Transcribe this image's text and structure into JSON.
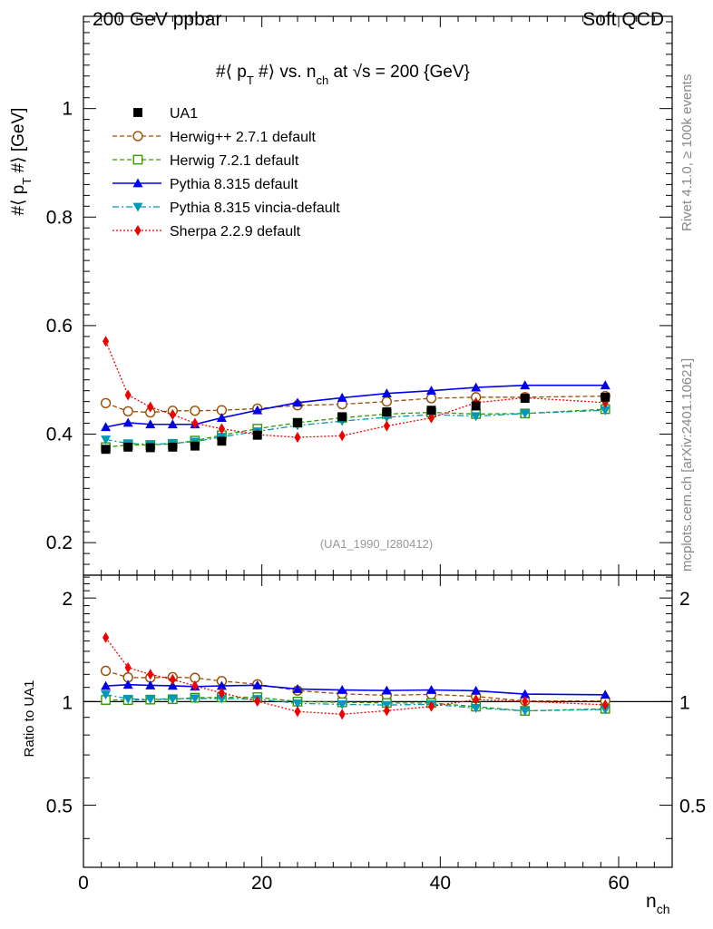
{
  "header": {
    "left": "200 GeV ppbar",
    "right": "Soft QCD",
    "title_main": "#⟨ p",
    "title_sub_t": "T",
    "title_rest": " #⟩ vs. n",
    "title_sub_ch": "ch",
    "title_tail": " at √s = 200 {GeV}",
    "ref": "(UA1_1990_I280412)"
  },
  "side_text": {
    "rivet": "Rivet 4.1.0, ≥ 100k events",
    "mcplots": "mcplots.cern.ch [arXiv:2401.10621]"
  },
  "axes": {
    "ylabel_main_a": "#⟨ p",
    "ylabel_main_sub": "T",
    "ylabel_main_b": " #⟩ [GeV]",
    "ylabel_ratio": "Ratio to UA1",
    "xlabel": "n",
    "xlabel_sub": "ch"
  },
  "chart_data": {
    "type": "line",
    "title": "#⟨ p_T #⟩ vs. n_ch at √s = 200 {GeV}",
    "xlim": [
      0,
      66
    ],
    "ylim_main": [
      0.14,
      1.17
    ],
    "ylim_ratio": [
      0.33,
      2.33
    ],
    "x_ticks": [
      0,
      20,
      40,
      60
    ],
    "y_ticks_main": [
      0.2,
      0.4,
      0.6,
      0.8,
      1
    ],
    "y_ticks_ratio": [
      0.5,
      1,
      2
    ],
    "x": [
      2.5,
      5,
      7.5,
      10,
      12.5,
      15.5,
      19.5,
      24,
      29,
      34,
      39,
      44,
      49.5,
      58.5
    ],
    "data": {
      "name": "UA1",
      "values": [
        0.372,
        0.376,
        0.375,
        0.376,
        0.378,
        0.387,
        0.398,
        0.421,
        0.432,
        0.441,
        0.444,
        0.452,
        0.466,
        0.468
      ]
    },
    "series": [
      {
        "name": "Herwig++ 2.7.1 default",
        "color": "#994c00",
        "marker": "circle-open",
        "dash": "5,3",
        "values": [
          0.457,
          0.442,
          0.44,
          0.443,
          0.443,
          0.444,
          0.447,
          0.453,
          0.455,
          0.46,
          0.466,
          0.468,
          0.468,
          0.47
        ]
      },
      {
        "name": "Herwig 7.2.1 default",
        "color": "#339900",
        "marker": "square-open",
        "dash": "5,3",
        "values": [
          0.376,
          0.38,
          0.38,
          0.382,
          0.388,
          0.398,
          0.41,
          0.421,
          0.43,
          0.437,
          0.44,
          0.437,
          0.438,
          0.446
        ]
      },
      {
        "name": "Pythia 8.315 default",
        "color": "#0000ee",
        "marker": "triangle-up",
        "dash": "",
        "values": [
          0.413,
          0.421,
          0.418,
          0.418,
          0.418,
          0.43,
          0.444,
          0.458,
          0.467,
          0.475,
          0.48,
          0.486,
          0.49,
          0.49
        ]
      },
      {
        "name": "Pythia 8.315 vincia-default",
        "color": "#0099bb",
        "marker": "triangle-down",
        "dash": "7,3,2,3",
        "values": [
          0.39,
          0.383,
          0.381,
          0.383,
          0.386,
          0.395,
          0.405,
          0.416,
          0.424,
          0.431,
          0.436,
          0.433,
          0.438,
          0.444
        ]
      },
      {
        "name": "Sherpa 2.2.9 default",
        "color": "#ee0000",
        "marker": "diamond",
        "dash": "2,2",
        "values": [
          0.571,
          0.472,
          0.45,
          0.436,
          0.42,
          0.41,
          0.399,
          0.394,
          0.397,
          0.415,
          0.43,
          0.458,
          0.467,
          0.458
        ]
      }
    ]
  }
}
